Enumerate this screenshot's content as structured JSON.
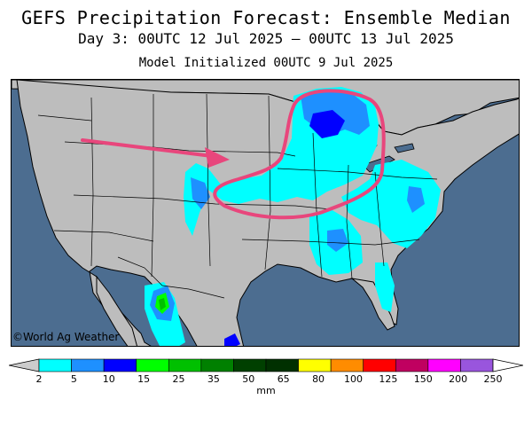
{
  "header": {
    "title": "GEFS Precipitation Forecast: Ensemble Median",
    "subtitle": "Day 3: 00UTC 12 Jul 2025 — 00UTC 13 Jul 2025",
    "init": "Model Initialized 00UTC 9 Jul 2025"
  },
  "map": {
    "credit": "©World Ag Weather",
    "colors": {
      "ocean": "#4c6d90",
      "land": "#bdbdbd",
      "border": "#000000",
      "annotation": "#e8467c"
    }
  },
  "legend": {
    "units": "mm",
    "ticks": [
      "2",
      "5",
      "10",
      "15",
      "25",
      "35",
      "50",
      "65",
      "80",
      "100",
      "125",
      "150",
      "200",
      "250"
    ],
    "colors": [
      "#00ffff",
      "#1e90ff",
      "#0000ff",
      "#00ff00",
      "#00c000",
      "#008000",
      "#004000",
      "#003000",
      "#ffff00",
      "#ff8c00",
      "#ff0000",
      "#c00060",
      "#ff00ff",
      "#9955dd"
    ]
  }
}
